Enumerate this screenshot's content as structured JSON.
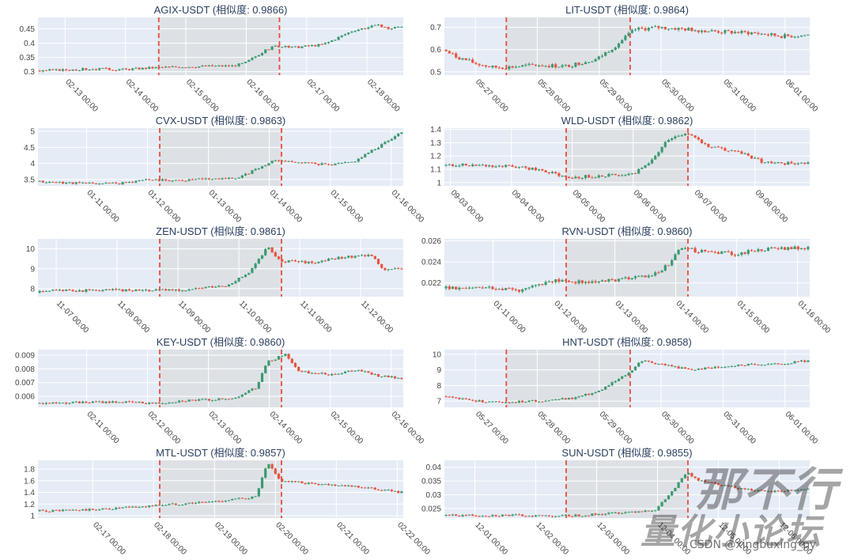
{
  "watermark": {
    "line1": "那不行",
    "line2": "量化小论坛",
    "credit": "CSDN @xingbuxing_py"
  },
  "colors": {
    "up": "#3d9970",
    "down": "#e8543f",
    "marker": "#e74c3c",
    "shade": "#dde1e6",
    "plot_bg": "#e5ecf6",
    "grid": "#ffffff",
    "text": "#2a3f5f"
  },
  "chart_data": [
    {
      "type": "candlestick",
      "title": "AGIX-USDT (相似度: 0.9866)",
      "x_ticks": [
        "02-13 00:00",
        "02-14 00:00",
        "02-15 00:00",
        "02-16 00:00",
        "02-17 00:00",
        "02-18 00:00"
      ],
      "x_range": [
        -0.45,
        5.6
      ],
      "marker_x": [
        1.55,
        3.55
      ],
      "y_ticks": [
        0.3,
        0.35,
        0.4,
        0.45
      ],
      "y_labels": [
        "0.3",
        "0.35",
        "0.4",
        "0.45"
      ],
      "ylim": [
        0.288,
        0.49
      ],
      "path": [
        [
          -0.45,
          0.303
        ],
        [
          0.5,
          0.31
        ],
        [
          1.0,
          0.308
        ],
        [
          1.55,
          0.315
        ],
        [
          2.0,
          0.318
        ],
        [
          2.8,
          0.321
        ],
        [
          3.0,
          0.33
        ],
        [
          3.3,
          0.37
        ],
        [
          3.5,
          0.39
        ],
        [
          3.8,
          0.385
        ],
        [
          4.3,
          0.395
        ],
        [
          4.8,
          0.445
        ],
        [
          5.2,
          0.462
        ],
        [
          5.4,
          0.45
        ],
        [
          5.6,
          0.46
        ]
      ],
      "noise": 0.004,
      "seed": 3
    },
    {
      "type": "candlestick",
      "title": "LIT-USDT (相似度: 0.9864)",
      "x_ticks": [
        "05-27 00:00",
        "05-28 00:00",
        "05-29 00:00",
        "05-30 00:00",
        "05-31 00:00",
        "06-01 00:00"
      ],
      "x_range": [
        -0.5,
        5.4
      ],
      "marker_x": [
        0.5,
        2.5
      ],
      "y_ticks": [
        0.5,
        0.6,
        0.7
      ],
      "y_labels": [
        "0.5",
        "0.6",
        "0.7"
      ],
      "ylim": [
        0.485,
        0.745
      ],
      "path": [
        [
          -0.5,
          0.6
        ],
        [
          -0.3,
          0.57
        ],
        [
          0.0,
          0.54
        ],
        [
          0.3,
          0.52
        ],
        [
          0.5,
          0.52
        ],
        [
          1.0,
          0.53
        ],
        [
          1.5,
          0.525
        ],
        [
          2.0,
          0.56
        ],
        [
          2.3,
          0.62
        ],
        [
          2.6,
          0.69
        ],
        [
          3.0,
          0.7
        ],
        [
          3.5,
          0.69
        ],
        [
          4.0,
          0.68
        ],
        [
          4.5,
          0.675
        ],
        [
          5.0,
          0.66
        ],
        [
          5.4,
          0.665
        ]
      ],
      "noise": 0.009,
      "seed": 7
    },
    {
      "type": "candlestick",
      "title": "CVX-USDT (相似度: 0.9863)",
      "x_ticks": [
        "01-11 00:00",
        "01-12 00:00",
        "01-13 00:00",
        "01-14 00:00",
        "01-15 00:00",
        "01-16 00:00"
      ],
      "x_range": [
        -0.8,
        5.2
      ],
      "marker_x": [
        1.2,
        3.2
      ],
      "y_ticks": [
        3.5,
        4,
        4.5,
        5
      ],
      "y_labels": [
        "3.5",
        "4",
        "4.5",
        "5"
      ],
      "ylim": [
        3.3,
        5.1
      ],
      "path": [
        [
          -0.8,
          3.43
        ],
        [
          0.0,
          3.38
        ],
        [
          0.6,
          3.38
        ],
        [
          1.0,
          3.5
        ],
        [
          1.5,
          3.47
        ],
        [
          2.0,
          3.52
        ],
        [
          2.5,
          3.55
        ],
        [
          2.8,
          3.8
        ],
        [
          3.1,
          4.1
        ],
        [
          3.5,
          4.05
        ],
        [
          4.0,
          3.95
        ],
        [
          4.4,
          4.05
        ],
        [
          4.8,
          4.5
        ],
        [
          5.2,
          5.0
        ]
      ],
      "noise": 0.035,
      "seed": 11
    },
    {
      "type": "candlestick",
      "title": "WLD-USDT (相似度: 0.9862)",
      "x_ticks": [
        "09-03 00:00",
        "09-04 00:00",
        "09-05 00:00",
        "09-06 00:00",
        "09-07 00:00",
        "09-08 00:00"
      ],
      "x_range": [
        -0.1,
        5.9
      ],
      "marker_x": [
        1.9,
        3.9
      ],
      "y_ticks": [
        1,
        1.1,
        1.2,
        1.3,
        1.4
      ],
      "y_labels": [
        "1",
        "1.1",
        "1.2",
        "1.3",
        "1.4"
      ],
      "ylim": [
        0.975,
        1.41
      ],
      "path": [
        [
          -0.1,
          1.13
        ],
        [
          0.5,
          1.13
        ],
        [
          1.0,
          1.12
        ],
        [
          1.5,
          1.1
        ],
        [
          1.9,
          1.04
        ],
        [
          2.5,
          1.05
        ],
        [
          3.0,
          1.06
        ],
        [
          3.3,
          1.15
        ],
        [
          3.6,
          1.33
        ],
        [
          3.9,
          1.37
        ],
        [
          4.3,
          1.27
        ],
        [
          4.8,
          1.22
        ],
        [
          5.2,
          1.15
        ],
        [
          5.9,
          1.14
        ]
      ],
      "noise": 0.012,
      "seed": 19
    },
    {
      "type": "candlestick",
      "title": "ZEN-USDT (相似度: 0.9861)",
      "x_ticks": [
        "11-07 00:00",
        "11-08 00:00",
        "11-09 00:00",
        "11-10 00:00",
        "11-11 00:00",
        "11-12 00:00"
      ],
      "x_range": [
        -0.3,
        5.7
      ],
      "marker_x": [
        1.7,
        3.7
      ],
      "y_ticks": [
        8,
        9,
        10
      ],
      "y_labels": [
        "8",
        "9",
        "10"
      ],
      "ylim": [
        7.6,
        10.5
      ],
      "path": [
        [
          -0.3,
          7.8
        ],
        [
          0.0,
          7.9
        ],
        [
          1.0,
          7.92
        ],
        [
          2.0,
          7.93
        ],
        [
          2.8,
          8.15
        ],
        [
          3.2,
          8.8
        ],
        [
          3.5,
          10.1
        ],
        [
          3.7,
          9.4
        ],
        [
          4.2,
          9.3
        ],
        [
          4.8,
          9.6
        ],
        [
          5.2,
          9.7
        ],
        [
          5.4,
          9.0
        ],
        [
          5.7,
          9.0
        ]
      ],
      "noise": 0.07,
      "seed": 23
    },
    {
      "type": "candlestick",
      "title": "RVN-USDT (相似度: 0.9860)",
      "x_ticks": [
        "01-11 00:00",
        "01-12 00:00",
        "01-13 00:00",
        "01-14 00:00",
        "01-15 00:00",
        "01-16 00:00"
      ],
      "x_range": [
        -0.8,
        5.2
      ],
      "marker_x": [
        1.2,
        3.2
      ],
      "y_ticks": [
        0.022,
        0.024,
        0.026
      ],
      "y_labels": [
        "0.022",
        "0.024",
        "0.026"
      ],
      "ylim": [
        0.0207,
        0.0262
      ],
      "path": [
        [
          -0.8,
          0.0215
        ],
        [
          0.0,
          0.0216
        ],
        [
          0.5,
          0.0213
        ],
        [
          1.0,
          0.0222
        ],
        [
          1.5,
          0.0221
        ],
        [
          2.0,
          0.0223
        ],
        [
          2.6,
          0.0226
        ],
        [
          2.9,
          0.0237
        ],
        [
          3.1,
          0.0255
        ],
        [
          3.4,
          0.025
        ],
        [
          4.0,
          0.0248
        ],
        [
          4.5,
          0.0252
        ],
        [
          5.2,
          0.0254
        ]
      ],
      "noise": 0.00018,
      "seed": 29
    },
    {
      "type": "candlestick",
      "title": "KEY-USDT (相似度: 0.9860)",
      "x_ticks": [
        "02-11 00:00",
        "02-12 00:00",
        "02-13 00:00",
        "02-14 00:00",
        "02-15 00:00",
        "02-16 00:00"
      ],
      "x_range": [
        -0.8,
        5.2
      ],
      "marker_x": [
        1.2,
        3.2
      ],
      "y_ticks": [
        0.006,
        0.007,
        0.008,
        0.009
      ],
      "y_labels": [
        "0.006",
        "0.007",
        "0.008",
        "0.009"
      ],
      "ylim": [
        0.0052,
        0.0094
      ],
      "path": [
        [
          -0.8,
          0.0055
        ],
        [
          0.5,
          0.0056
        ],
        [
          1.2,
          0.0055
        ],
        [
          1.6,
          0.0057
        ],
        [
          2.4,
          0.0058
        ],
        [
          2.8,
          0.0066
        ],
        [
          3.0,
          0.0085
        ],
        [
          3.3,
          0.0091
        ],
        [
          3.5,
          0.0078
        ],
        [
          4.0,
          0.0076
        ],
        [
          4.5,
          0.0079
        ],
        [
          4.8,
          0.0075
        ],
        [
          5.2,
          0.0073
        ]
      ],
      "noise": 8e-05,
      "seed": 31
    },
    {
      "type": "candlestick",
      "title": "HNT-USDT (相似度: 0.9858)",
      "x_ticks": [
        "05-27 00:00",
        "05-28 00:00",
        "05-29 00:00",
        "05-30 00:00",
        "05-31 00:00",
        "06-01 00:00"
      ],
      "x_range": [
        -0.5,
        5.4
      ],
      "marker_x": [
        0.5,
        2.5
      ],
      "y_ticks": [
        7,
        8,
        9,
        10
      ],
      "y_labels": [
        "7",
        "8",
        "9",
        "10"
      ],
      "ylim": [
        6.6,
        10.3
      ],
      "path": [
        [
          -0.5,
          7.3
        ],
        [
          0.0,
          7.0
        ],
        [
          0.5,
          6.95
        ],
        [
          1.0,
          7.0
        ],
        [
          1.6,
          7.2
        ],
        [
          2.0,
          7.6
        ],
        [
          2.5,
          8.8
        ],
        [
          2.7,
          9.6
        ],
        [
          3.0,
          9.4
        ],
        [
          3.5,
          9.0
        ],
        [
          4.2,
          9.3
        ],
        [
          5.0,
          9.4
        ],
        [
          5.4,
          9.6
        ]
      ],
      "noise": 0.07,
      "seed": 37
    },
    {
      "type": "candlestick",
      "title": "MTL-USDT (相似度: 0.9857)",
      "x_ticks": [
        "02-17 00:00",
        "02-18 00:00",
        "02-19 00:00",
        "02-20 00:00",
        "02-21 00:00",
        "02-22 00:00"
      ],
      "x_range": [
        -0.9,
        5.1
      ],
      "marker_x": [
        1.1,
        3.1
      ],
      "y_ticks": [
        1,
        1.2,
        1.4,
        1.6,
        1.8
      ],
      "y_labels": [
        "1",
        "1.2",
        "1.4",
        "1.6",
        "1.8"
      ],
      "ylim": [
        0.96,
        1.95
      ],
      "path": [
        [
          -0.9,
          1.08
        ],
        [
          0.0,
          1.1
        ],
        [
          0.8,
          1.15
        ],
        [
          1.1,
          1.18
        ],
        [
          2.0,
          1.24
        ],
        [
          2.7,
          1.32
        ],
        [
          2.9,
          1.9
        ],
        [
          3.1,
          1.6
        ],
        [
          3.6,
          1.55
        ],
        [
          4.2,
          1.52
        ],
        [
          5.1,
          1.4
        ]
      ],
      "noise": 0.02,
      "seed": 41
    },
    {
      "type": "candlestick",
      "title": "SUN-USDT (相似度: 0.9855)",
      "x_ticks": [
        "12-01 00:00",
        "12-02 00:00",
        "12-03 00:00",
        "12-04 00:00",
        "12-05 00:00",
        "12-06 00:00"
      ],
      "x_range": [
        -0.5,
        5.5
      ],
      "marker_x": [
        1.5,
        3.5
      ],
      "y_ticks": [
        0.025,
        0.03,
        0.035,
        0.04
      ],
      "y_labels": [
        "0.025",
        "0.03",
        "0.035",
        "0.04"
      ],
      "ylim": [
        0.0215,
        0.0425
      ],
      "path": [
        [
          -0.5,
          0.0225
        ],
        [
          0.5,
          0.0225
        ],
        [
          1.5,
          0.0223
        ],
        [
          2.0,
          0.0228
        ],
        [
          3.0,
          0.0245
        ],
        [
          3.3,
          0.032
        ],
        [
          3.5,
          0.038
        ],
        [
          3.7,
          0.0355
        ],
        [
          4.2,
          0.033
        ],
        [
          4.8,
          0.031
        ],
        [
          5.5,
          0.032
        ]
      ],
      "noise": 0.0004,
      "seed": 43
    }
  ]
}
